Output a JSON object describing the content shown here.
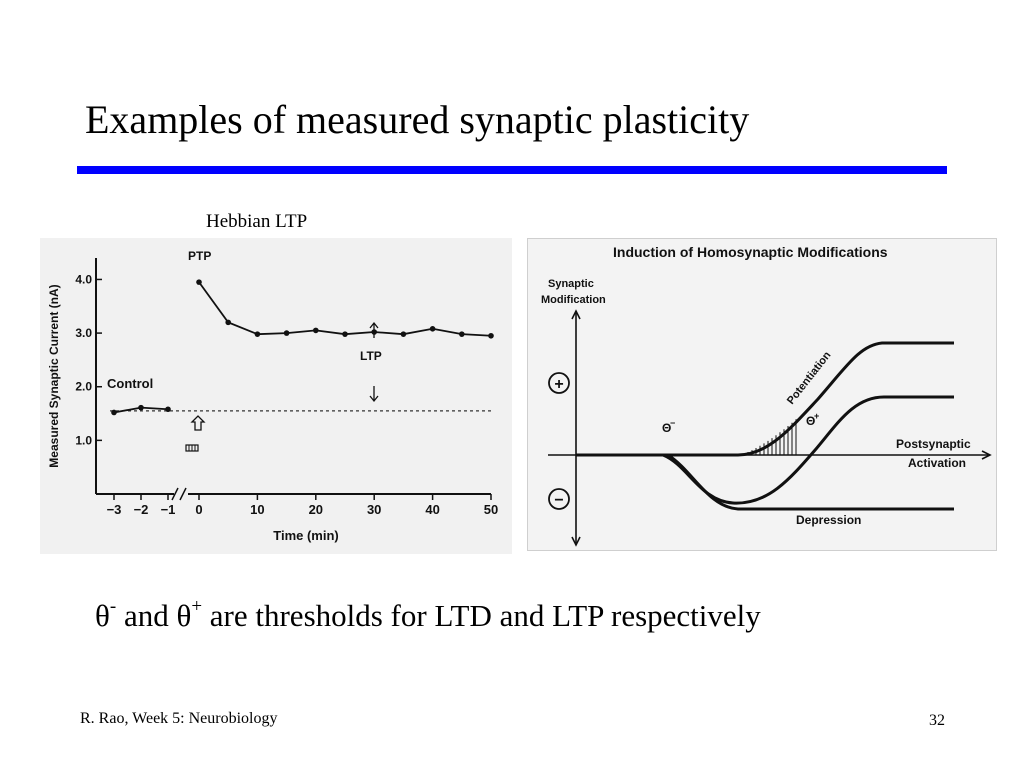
{
  "slide": {
    "title": "Examples of measured synaptic plasticity",
    "caption": "Hebbian LTP",
    "statement": {
      "theta_minus": "θ",
      "sup_minus": "-",
      "and_text": " and ",
      "theta_plus": "θ",
      "sup_plus": "+",
      "rest_text": " are thresholds for LTD and LTP respectively"
    },
    "footer": "R. Rao, Week 5: Neurobiology",
    "page_number": "32",
    "accent_color": "#0000ff"
  },
  "chart_data": [
    {
      "type": "line",
      "title": "",
      "xlabel": "Time (min)",
      "ylabel": "Measured Synaptic Current (nA)",
      "x_ticks": [
        "−3",
        "−2",
        "−1",
        "0",
        "10",
        "20",
        "30",
        "40",
        "50"
      ],
      "y_ticks": [
        "1.0",
        "2.0",
        "3.0",
        "4.0"
      ],
      "ylim": [
        0,
        4.4
      ],
      "control_series": {
        "label": "Control",
        "x": [
          -3,
          -2,
          -1
        ],
        "y": [
          1.52,
          1.61,
          1.58
        ]
      },
      "ltp_series": {
        "x": [
          0,
          5,
          10,
          15,
          20,
          25,
          30,
          35,
          40,
          45,
          50
        ],
        "y": [
          3.95,
          3.2,
          2.98,
          3.0,
          3.05,
          2.98,
          3.02,
          2.98,
          3.08,
          2.98,
          2.95
        ]
      },
      "baseline": 1.55,
      "annotations": [
        "PTP",
        "LTP"
      ],
      "grid": false
    },
    {
      "type": "line",
      "title": "Induction of Homosynaptic Modifications",
      "ylabel": "Synaptic Modification",
      "xlabel": "Postsynaptic Activation",
      "symbols": {
        "plus": "+",
        "minus": "−"
      },
      "thresholds": {
        "theta_minus": "Θ",
        "theta_minus_sup": "−",
        "theta_plus": "Θ",
        "theta_plus_sup": "+"
      },
      "curve_labels": [
        "Potentiation",
        "Depression"
      ],
      "curves": [
        {
          "label": "Potentiation",
          "shape": "sigmoid rising from threshold to upper plateau"
        },
        {
          "label": "Depression",
          "shape": "falls below axis after Θ−, reaches lower plateau"
        },
        {
          "shape": "dips below axis after Θ−, rises through axis at Θ+, plateaus above"
        }
      ],
      "grid": false
    }
  ]
}
